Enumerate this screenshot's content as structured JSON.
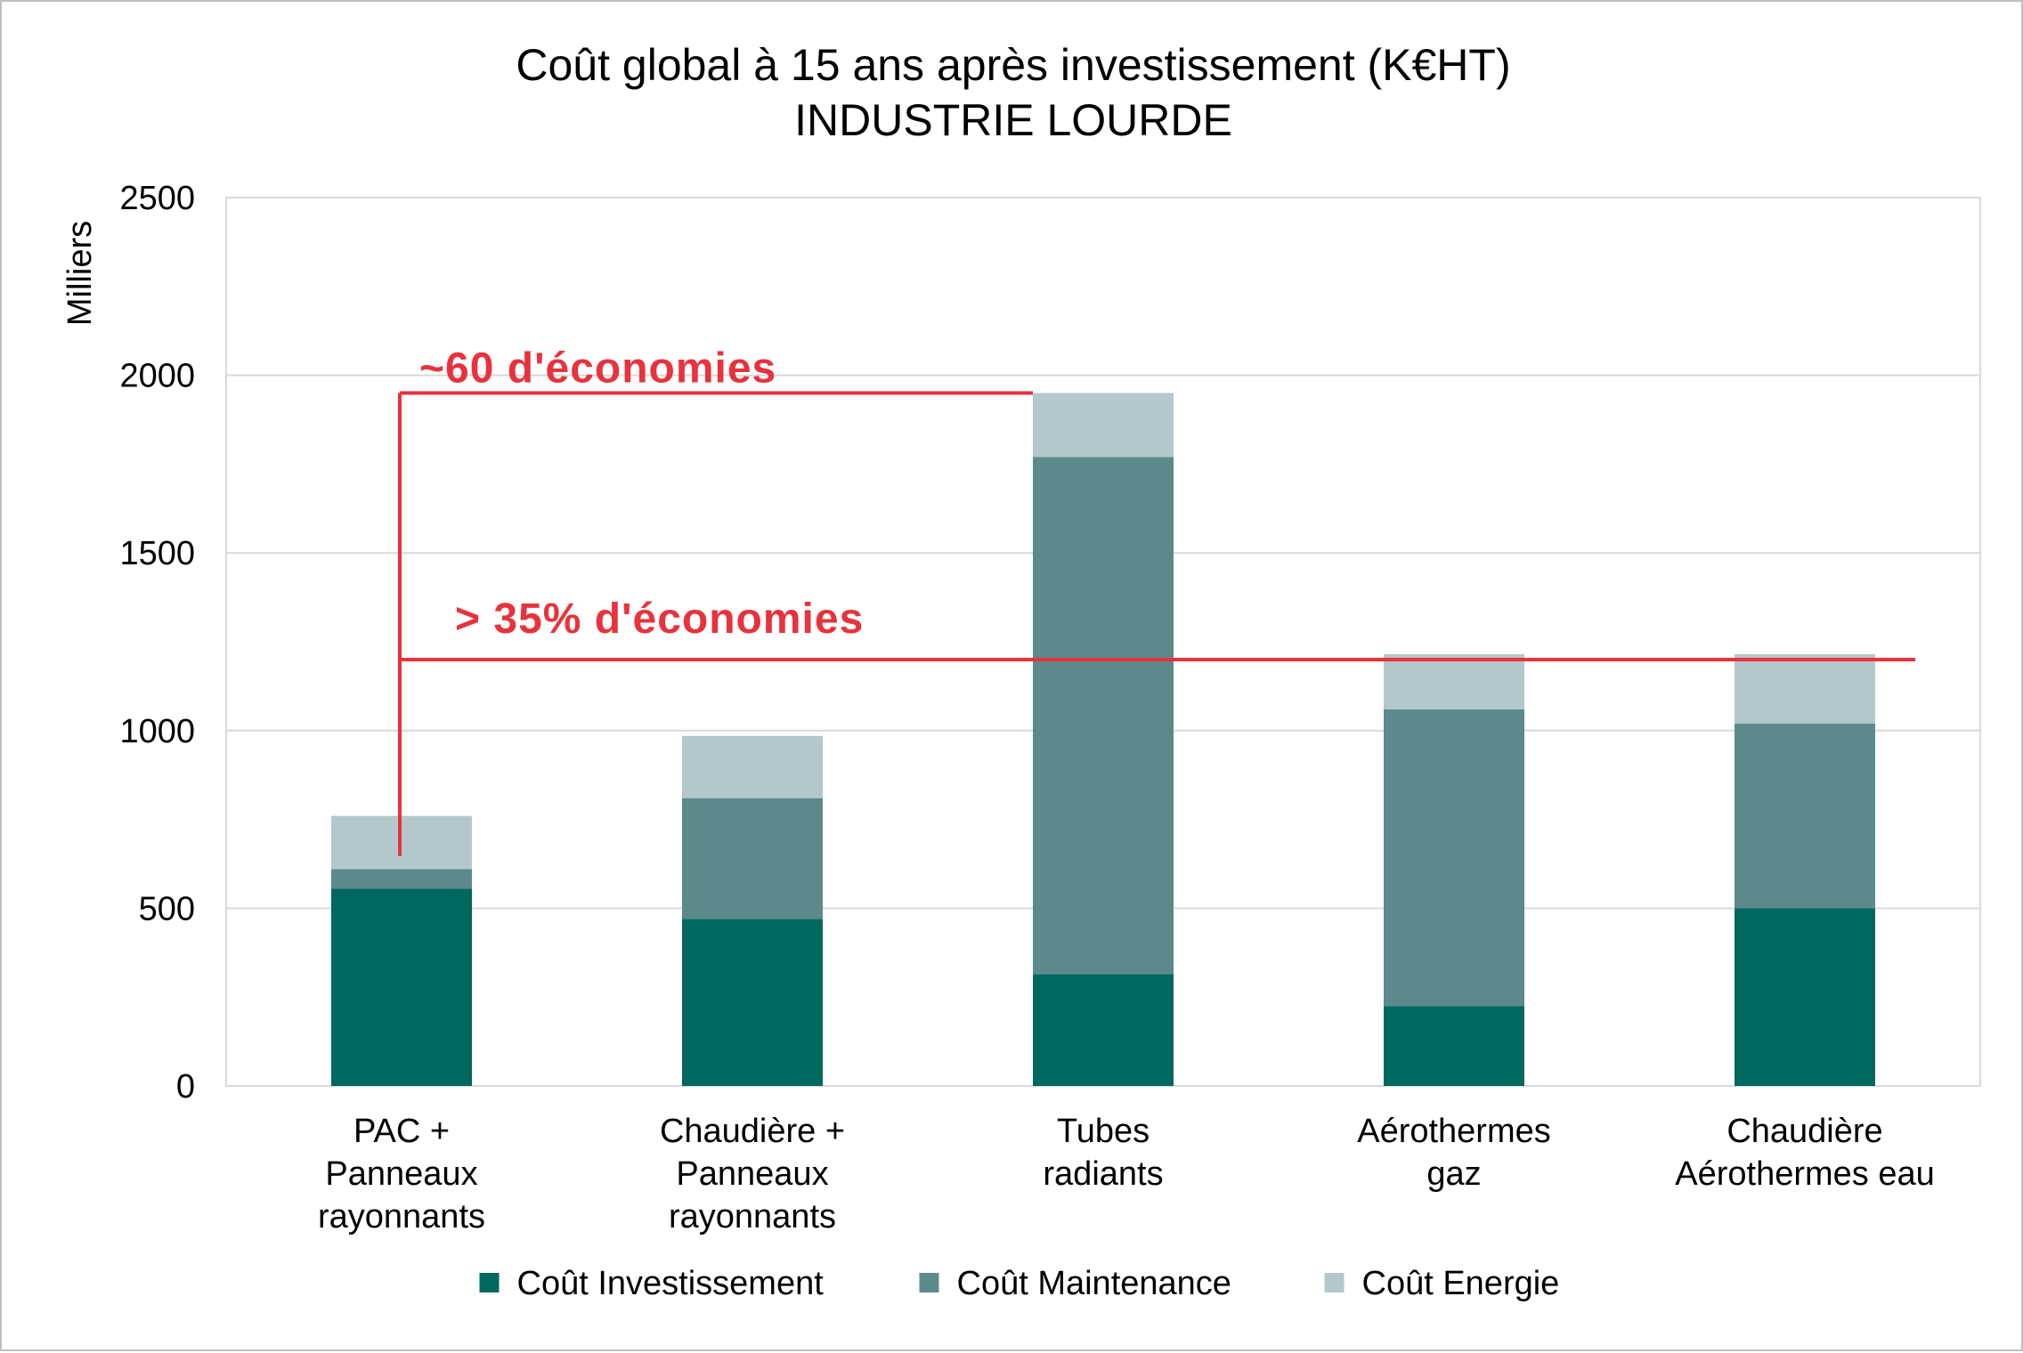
{
  "chart_data": {
    "type": "bar",
    "stacked": true,
    "title": "Coût global à 15 ans après investissement (K€HT)",
    "subtitle": "INDUSTRIE LOURDE",
    "ylabel": "Milliers",
    "ylim": [
      0,
      2500
    ],
    "yticks": [
      "0",
      "500",
      "1000",
      "1500",
      "2000",
      "2500"
    ],
    "grid": true,
    "legend_position": "bottom",
    "categories": [
      [
        "PAC +",
        "Panneaux",
        "rayonnants"
      ],
      [
        "Chaudière +",
        "Panneaux",
        "rayonnants"
      ],
      [
        "Tubes",
        "radiants"
      ],
      [
        "Aérothermes",
        "gaz"
      ],
      [
        "Chaudière",
        "Aérothermes eau"
      ]
    ],
    "series": [
      {
        "name": "Coût Investissement",
        "color": "#00685f",
        "values": [
          555,
          470,
          315,
          225,
          500
        ]
      },
      {
        "name": "Coût Maintenance",
        "color": "#5c8a8b",
        "values": [
          55,
          340,
          1455,
          835,
          520
        ]
      },
      {
        "name": "Coût Energie",
        "color": "#b3c8ca",
        "values": [
          150,
          175,
          180,
          155,
          195
        ]
      }
    ],
    "annotations": [
      {
        "text": "~60 d'économies",
        "from_category": 0,
        "to_category": 2,
        "level": 1950,
        "color": "#e8323c"
      },
      {
        "text": "> 35% d'économies",
        "from_category": 0,
        "to_category": 4,
        "level": 1200,
        "color": "#e8323c"
      }
    ]
  }
}
